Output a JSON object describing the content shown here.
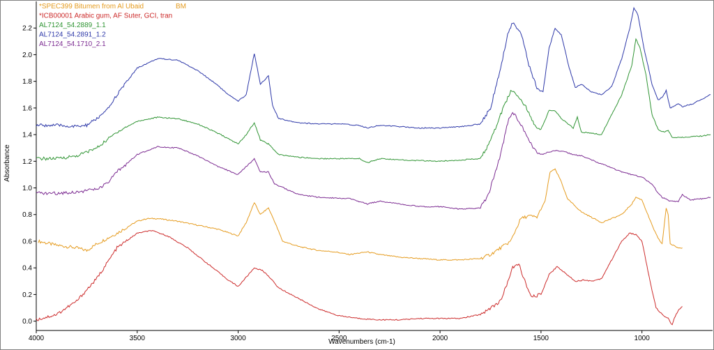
{
  "chart_data": {
    "type": "line",
    "xlabel": "Wavenumbers (cm-1)",
    "ylabel": "Absorbance",
    "xlim": [
      4000,
      650
    ],
    "ylim": [
      -0.07,
      2.4
    ],
    "x_ticks": [
      4000,
      3500,
      3000,
      2500,
      2000,
      1500,
      1000
    ],
    "y_ticks": [
      0.0,
      0.2,
      0.4,
      0.6,
      0.8,
      1.0,
      1.2,
      1.4,
      1.6,
      1.8,
      2.0,
      2.2
    ],
    "y_tick_labels": [
      "0.0",
      "0.2",
      "0.4",
      "0.6",
      "0.8",
      "1.0",
      "1.2",
      "1.4",
      "1.6",
      "1.8",
      "2.0",
      "2.2"
    ],
    "grid": false,
    "legend_position": "top-left",
    "legend_extra": {
      "text": "BM",
      "color": "#e59b1e"
    },
    "series": [
      {
        "name": "*SPEC399 Bitumen from Al Ubaid",
        "color": "#e59b1e",
        "points": [
          [
            3990,
            0.6
          ],
          [
            3900,
            0.57
          ],
          [
            3800,
            0.55
          ],
          [
            3750,
            0.53
          ],
          [
            3700,
            0.58
          ],
          [
            3600,
            0.66
          ],
          [
            3500,
            0.75
          ],
          [
            3450,
            0.77
          ],
          [
            3400,
            0.77
          ],
          [
            3300,
            0.75
          ],
          [
            3200,
            0.72
          ],
          [
            3100,
            0.69
          ],
          [
            3000,
            0.64
          ],
          [
            2960,
            0.74
          ],
          [
            2920,
            0.89
          ],
          [
            2890,
            0.8
          ],
          [
            2850,
            0.85
          ],
          [
            2820,
            0.75
          ],
          [
            2780,
            0.6
          ],
          [
            2700,
            0.56
          ],
          [
            2600,
            0.53
          ],
          [
            2520,
            0.52
          ],
          [
            2450,
            0.5
          ],
          [
            2360,
            0.52
          ],
          [
            2300,
            0.5
          ],
          [
            2200,
            0.48
          ],
          [
            2000,
            0.46
          ],
          [
            1900,
            0.46
          ],
          [
            1800,
            0.47
          ],
          [
            1750,
            0.5
          ],
          [
            1700,
            0.55
          ],
          [
            1650,
            0.6
          ],
          [
            1600,
            0.77
          ],
          [
            1560,
            0.79
          ],
          [
            1520,
            0.78
          ],
          [
            1480,
            0.9
          ],
          [
            1455,
            1.12
          ],
          [
            1430,
            1.14
          ],
          [
            1400,
            1.05
          ],
          [
            1370,
            0.92
          ],
          [
            1300,
            0.82
          ],
          [
            1200,
            0.74
          ],
          [
            1100,
            0.8
          ],
          [
            1050,
            0.88
          ],
          [
            1030,
            0.93
          ],
          [
            1000,
            0.91
          ],
          [
            950,
            0.72
          ],
          [
            920,
            0.62
          ],
          [
            900,
            0.58
          ],
          [
            880,
            0.85
          ],
          [
            870,
            0.8
          ],
          [
            860,
            0.58
          ],
          [
            820,
            0.55
          ],
          [
            800,
            0.55
          ]
        ]
      },
      {
        "name": "*ICB00001 Arabic gum, AF Suter, GCI, tran",
        "color": "#cc2a2a",
        "points": [
          [
            4000,
            0.01
          ],
          [
            3900,
            0.05
          ],
          [
            3800,
            0.15
          ],
          [
            3700,
            0.32
          ],
          [
            3600,
            0.55
          ],
          [
            3500,
            0.66
          ],
          [
            3430,
            0.68
          ],
          [
            3350,
            0.64
          ],
          [
            3250,
            0.55
          ],
          [
            3150,
            0.43
          ],
          [
            3050,
            0.31
          ],
          [
            3000,
            0.26
          ],
          [
            2960,
            0.33
          ],
          [
            2920,
            0.4
          ],
          [
            2880,
            0.38
          ],
          [
            2850,
            0.34
          ],
          [
            2800,
            0.25
          ],
          [
            2700,
            0.17
          ],
          [
            2600,
            0.09
          ],
          [
            2500,
            0.04
          ],
          [
            2400,
            0.02
          ],
          [
            2300,
            0.01
          ],
          [
            2200,
            0.01
          ],
          [
            2100,
            0.02
          ],
          [
            2000,
            0.02
          ],
          [
            1900,
            0.02
          ],
          [
            1800,
            0.05
          ],
          [
            1700,
            0.15
          ],
          [
            1640,
            0.4
          ],
          [
            1610,
            0.43
          ],
          [
            1580,
            0.3
          ],
          [
            1550,
            0.18
          ],
          [
            1500,
            0.2
          ],
          [
            1460,
            0.35
          ],
          [
            1420,
            0.41
          ],
          [
            1380,
            0.36
          ],
          [
            1330,
            0.3
          ],
          [
            1280,
            0.31
          ],
          [
            1250,
            0.3
          ],
          [
            1200,
            0.32
          ],
          [
            1150,
            0.46
          ],
          [
            1100,
            0.6
          ],
          [
            1060,
            0.66
          ],
          [
            1030,
            0.65
          ],
          [
            1000,
            0.6
          ],
          [
            960,
            0.3
          ],
          [
            930,
            0.1
          ],
          [
            900,
            0.05
          ],
          [
            870,
            0.02
          ],
          [
            850,
            -0.03
          ],
          [
            840,
            0.02
          ],
          [
            820,
            0.08
          ],
          [
            800,
            0.11
          ]
        ]
      },
      {
        "name": "AL7124_54.2889_1.1",
        "color": "#2f9433",
        "points": [
          [
            4000,
            1.22
          ],
          [
            3900,
            1.22
          ],
          [
            3800,
            1.24
          ],
          [
            3700,
            1.3
          ],
          [
            3650,
            1.36
          ],
          [
            3600,
            1.42
          ],
          [
            3500,
            1.5
          ],
          [
            3400,
            1.53
          ],
          [
            3300,
            1.52
          ],
          [
            3200,
            1.48
          ],
          [
            3100,
            1.41
          ],
          [
            3000,
            1.33
          ],
          [
            2960,
            1.4
          ],
          [
            2920,
            1.49
          ],
          [
            2890,
            1.36
          ],
          [
            2850,
            1.33
          ],
          [
            2800,
            1.25
          ],
          [
            2700,
            1.23
          ],
          [
            2600,
            1.22
          ],
          [
            2400,
            1.22
          ],
          [
            2360,
            1.19
          ],
          [
            2300,
            1.22
          ],
          [
            2200,
            1.21
          ],
          [
            2000,
            1.2
          ],
          [
            1900,
            1.21
          ],
          [
            1800,
            1.22
          ],
          [
            1750,
            1.35
          ],
          [
            1700,
            1.55
          ],
          [
            1650,
            1.73
          ],
          [
            1620,
            1.7
          ],
          [
            1580,
            1.62
          ],
          [
            1530,
            1.47
          ],
          [
            1500,
            1.44
          ],
          [
            1460,
            1.58
          ],
          [
            1430,
            1.58
          ],
          [
            1400,
            1.52
          ],
          [
            1340,
            1.45
          ],
          [
            1320,
            1.53
          ],
          [
            1300,
            1.42
          ],
          [
            1200,
            1.4
          ],
          [
            1100,
            1.7
          ],
          [
            1050,
            1.92
          ],
          [
            1030,
            2.12
          ],
          [
            1010,
            2.05
          ],
          [
            980,
            1.85
          ],
          [
            950,
            1.55
          ],
          [
            920,
            1.44
          ],
          [
            900,
            1.42
          ],
          [
            870,
            1.43
          ],
          [
            850,
            1.38
          ],
          [
            800,
            1.38
          ],
          [
            700,
            1.39
          ],
          [
            660,
            1.4
          ]
        ]
      },
      {
        "name": "AL7124_54.2891_1.2",
        "color": "#2c37a8",
        "points": [
          [
            4000,
            1.47
          ],
          [
            3900,
            1.47
          ],
          [
            3800,
            1.46
          ],
          [
            3750,
            1.47
          ],
          [
            3700,
            1.52
          ],
          [
            3650,
            1.58
          ],
          [
            3600,
            1.7
          ],
          [
            3500,
            1.9
          ],
          [
            3400,
            1.97
          ],
          [
            3300,
            1.96
          ],
          [
            3200,
            1.88
          ],
          [
            3100,
            1.77
          ],
          [
            3050,
            1.7
          ],
          [
            3000,
            1.65
          ],
          [
            2960,
            1.7
          ],
          [
            2920,
            2.01
          ],
          [
            2890,
            1.78
          ],
          [
            2850,
            1.84
          ],
          [
            2830,
            1.62
          ],
          [
            2800,
            1.52
          ],
          [
            2700,
            1.49
          ],
          [
            2600,
            1.48
          ],
          [
            2500,
            1.48
          ],
          [
            2400,
            1.47
          ],
          [
            2360,
            1.45
          ],
          [
            2300,
            1.47
          ],
          [
            2200,
            1.46
          ],
          [
            2100,
            1.45
          ],
          [
            2000,
            1.45
          ],
          [
            1900,
            1.46
          ],
          [
            1800,
            1.48
          ],
          [
            1750,
            1.6
          ],
          [
            1700,
            1.9
          ],
          [
            1660,
            2.18
          ],
          [
            1640,
            2.24
          ],
          [
            1600,
            2.17
          ],
          [
            1560,
            1.92
          ],
          [
            1520,
            1.75
          ],
          [
            1490,
            1.72
          ],
          [
            1460,
            2.05
          ],
          [
            1430,
            2.2
          ],
          [
            1400,
            2.15
          ],
          [
            1360,
            1.9
          ],
          [
            1330,
            1.75
          ],
          [
            1300,
            1.78
          ],
          [
            1250,
            1.72
          ],
          [
            1200,
            1.7
          ],
          [
            1150,
            1.76
          ],
          [
            1100,
            1.97
          ],
          [
            1060,
            2.2
          ],
          [
            1040,
            2.35
          ],
          [
            1020,
            2.3
          ],
          [
            990,
            2.05
          ],
          [
            950,
            1.78
          ],
          [
            920,
            1.66
          ],
          [
            900,
            1.68
          ],
          [
            880,
            1.73
          ],
          [
            860,
            1.6
          ],
          [
            820,
            1.63
          ],
          [
            800,
            1.61
          ],
          [
            750,
            1.63
          ],
          [
            700,
            1.67
          ],
          [
            660,
            1.7
          ]
        ]
      },
      {
        "name": "AL7124_54.1710_2.1",
        "color": "#7b2a91",
        "points": [
          [
            4000,
            0.96
          ],
          [
            3900,
            0.96
          ],
          [
            3800,
            0.97
          ],
          [
            3700,
            0.99
          ],
          [
            3650,
            1.03
          ],
          [
            3600,
            1.12
          ],
          [
            3500,
            1.25
          ],
          [
            3400,
            1.31
          ],
          [
            3300,
            1.3
          ],
          [
            3200,
            1.24
          ],
          [
            3100,
            1.16
          ],
          [
            3000,
            1.1
          ],
          [
            2960,
            1.16
          ],
          [
            2920,
            1.22
          ],
          [
            2890,
            1.12
          ],
          [
            2850,
            1.12
          ],
          [
            2820,
            1.03
          ],
          [
            2700,
            0.95
          ],
          [
            2600,
            0.93
          ],
          [
            2450,
            0.92
          ],
          [
            2360,
            0.88
          ],
          [
            2300,
            0.9
          ],
          [
            2200,
            0.88
          ],
          [
            2100,
            0.86
          ],
          [
            2000,
            0.86
          ],
          [
            1900,
            0.84
          ],
          [
            1800,
            0.85
          ],
          [
            1760,
            0.95
          ],
          [
            1700,
            1.25
          ],
          [
            1660,
            1.52
          ],
          [
            1640,
            1.57
          ],
          [
            1600,
            1.48
          ],
          [
            1560,
            1.35
          ],
          [
            1520,
            1.27
          ],
          [
            1500,
            1.25
          ],
          [
            1460,
            1.27
          ],
          [
            1420,
            1.28
          ],
          [
            1380,
            1.27
          ],
          [
            1340,
            1.25
          ],
          [
            1300,
            1.24
          ],
          [
            1200,
            1.18
          ],
          [
            1100,
            1.12
          ],
          [
            1050,
            1.1
          ],
          [
            1000,
            1.08
          ],
          [
            950,
            1.03
          ],
          [
            920,
            0.96
          ],
          [
            900,
            0.93
          ],
          [
            860,
            0.9
          ],
          [
            820,
            0.9
          ],
          [
            800,
            0.95
          ],
          [
            760,
            0.91
          ],
          [
            700,
            0.92
          ],
          [
            660,
            0.93
          ]
        ]
      }
    ]
  }
}
